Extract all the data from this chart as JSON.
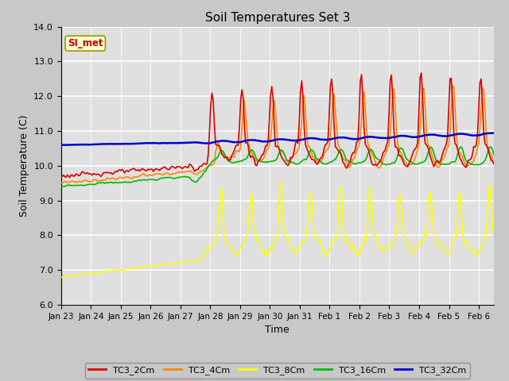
{
  "title": "Soil Temperatures Set 3",
  "xlabel": "Time",
  "ylabel": "Soil Temperature (C)",
  "ylim": [
    6.0,
    14.0
  ],
  "yticks": [
    6.0,
    7.0,
    8.0,
    9.0,
    10.0,
    11.0,
    12.0,
    13.0,
    14.0
  ],
  "series": {
    "TC3_2Cm": {
      "color": "#dd0000",
      "lw": 1.2
    },
    "TC3_4Cm": {
      "color": "#ff8800",
      "lw": 1.2
    },
    "TC3_8Cm": {
      "color": "#ffff00",
      "lw": 1.2
    },
    "TC3_16Cm": {
      "color": "#00bb00",
      "lw": 1.2
    },
    "TC3_32Cm": {
      "color": "#0000cc",
      "lw": 1.8
    }
  },
  "annotation_text": "SI_met",
  "annotation_color": "#cc0000",
  "annotation_bg": "#ffffcc",
  "annotation_border": "#999900",
  "day_labels": [
    "Jan 23",
    "Jan 24",
    "Jan 25",
    "Jan 26",
    "Jan 27",
    "Jan 28",
    "Jan 29",
    "Jan 30",
    "Jan 31",
    "Feb 1",
    "Feb 2",
    "Feb 3",
    "Feb 4",
    "Feb 5",
    "Feb 6"
  ],
  "fig_bg": "#c8c8c8",
  "plot_bg": "#e0e0e0"
}
